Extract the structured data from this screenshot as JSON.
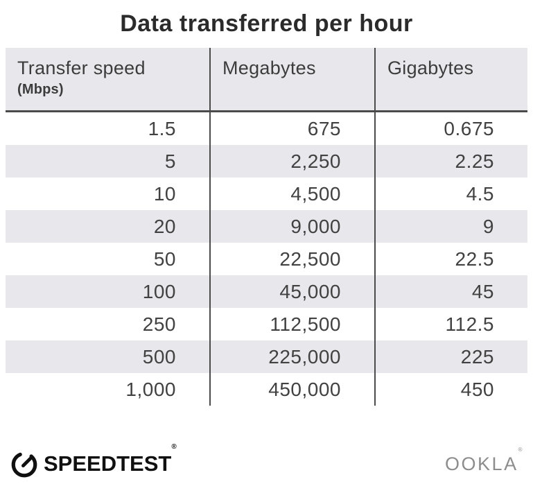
{
  "page": {
    "title": "Data transferred per hour"
  },
  "table": {
    "headers": {
      "col1_line1": "Transfer speed",
      "col1_line2": "(Mbps)",
      "col2": "Megabytes",
      "col3": "Gigabytes"
    },
    "rows": [
      [
        "1.5",
        "675",
        "0.675"
      ],
      [
        "5",
        "2,250",
        "2.25"
      ],
      [
        "10",
        "4,500",
        "4.5"
      ],
      [
        "20",
        "9,000",
        "9"
      ],
      [
        "50",
        "22,500",
        "22.5"
      ],
      [
        "100",
        "45,000",
        "45"
      ],
      [
        "250",
        "112,500",
        "112.5"
      ],
      [
        "500",
        "225,000",
        "225"
      ],
      [
        "1,000",
        "450,000",
        "450"
      ]
    ]
  },
  "footer": {
    "speedtest_label": "SPEEDTEST",
    "speedtest_mark": "®",
    "ookla_label": "OOKLA",
    "ookla_mark": "®"
  },
  "colors": {
    "stripe_background": "#e8e7ec",
    "divider_line": "#4a4a4a",
    "title_text": "#2b2b2b",
    "body_text": "#414141",
    "ookla_gray": "#8d8d8d"
  },
  "chart_data": {
    "type": "table",
    "title": "Data transferred per hour",
    "columns": [
      "Transfer speed (Mbps)",
      "Megabytes",
      "Gigabytes"
    ],
    "rows": [
      [
        1.5,
        675,
        0.675
      ],
      [
        5,
        2250,
        2.25
      ],
      [
        10,
        4500,
        4.5
      ],
      [
        20,
        9000,
        9
      ],
      [
        50,
        22500,
        22.5
      ],
      [
        100,
        45000,
        45
      ],
      [
        250,
        112500,
        112.5
      ],
      [
        500,
        225000,
        225
      ],
      [
        1000,
        450000,
        450
      ]
    ],
    "layout": {
      "zebra_striping": true,
      "column_dividers": true,
      "value_alignment": "right"
    }
  }
}
